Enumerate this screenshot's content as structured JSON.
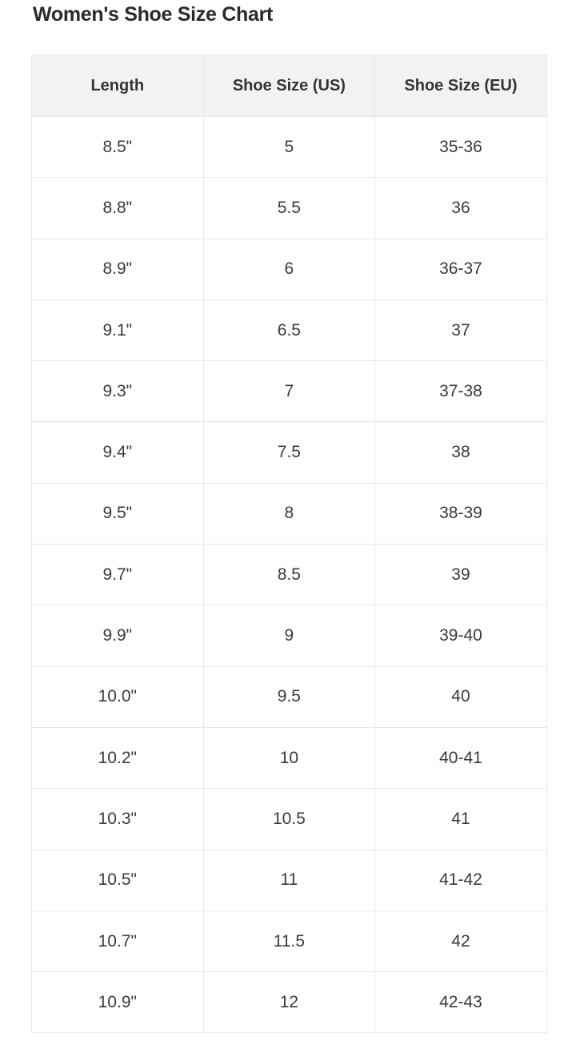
{
  "title": "Women's Shoe Size Chart",
  "table": {
    "headers": [
      "Length",
      "Shoe Size (US)",
      "Shoe Size (EU)"
    ],
    "rows": [
      [
        "8.5\"",
        "5",
        "35-36"
      ],
      [
        "8.8\"",
        "5.5",
        "36"
      ],
      [
        "8.9\"",
        "6",
        "36-37"
      ],
      [
        "9.1\"",
        "6.5",
        "37"
      ],
      [
        "9.3\"",
        "7",
        "37-38"
      ],
      [
        "9.4\"",
        "7.5",
        "38"
      ],
      [
        "9.5\"",
        "8",
        "38-39"
      ],
      [
        "9.7\"",
        "8.5",
        "39"
      ],
      [
        "9.9\"",
        "9",
        "39-40"
      ],
      [
        "10.0\"",
        "9.5",
        "40"
      ],
      [
        "10.2\"",
        "10",
        "40-41"
      ],
      [
        "10.3\"",
        "10.5",
        "41"
      ],
      [
        "10.5\"",
        "11",
        "41-42"
      ],
      [
        "10.7\"",
        "11.5",
        "42"
      ],
      [
        "10.9\"",
        "12",
        "42-43"
      ]
    ]
  },
  "colors": {
    "header_bg": "#f2f2f2",
    "border": "#e8e8e8",
    "text": "#333333"
  }
}
